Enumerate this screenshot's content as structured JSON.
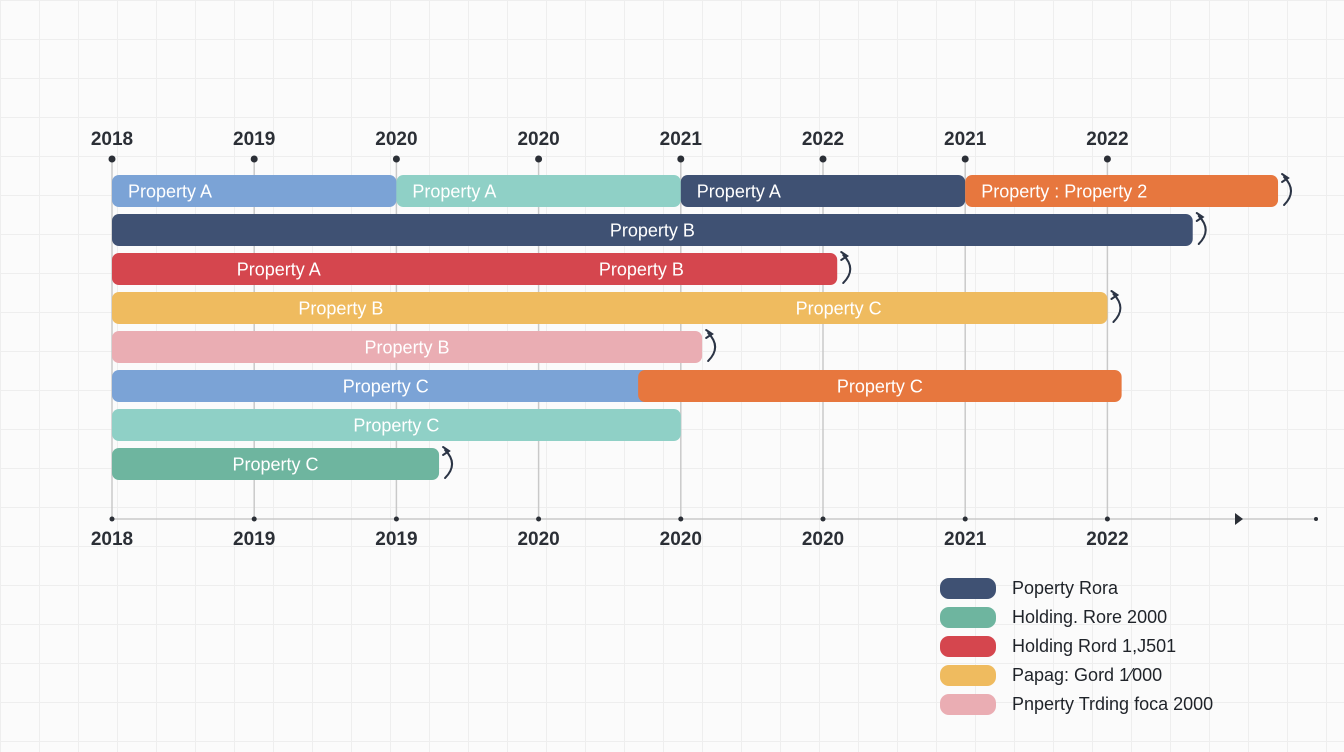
{
  "chart_data": {
    "type": "gantt",
    "title": "",
    "top_ticks": [
      "2018",
      "2019",
      "2020",
      "2020",
      "2021",
      "2022",
      "2021",
      "2022"
    ],
    "bottom_ticks": [
      "2018",
      "2019",
      "2019",
      "2020",
      "2020",
      "2020",
      "2021",
      "2022"
    ],
    "rows": [
      {
        "segments": [
          {
            "label": "Property A",
            "start": 0,
            "end": 2,
            "color": "#7ba3d6"
          },
          {
            "label": "Property A",
            "start": 2,
            "end": 4,
            "color": "#8fd0c6"
          },
          {
            "label": "Property A",
            "start": 4,
            "end": 6,
            "color": "#3f5173"
          },
          {
            "label": "Property : Property 2",
            "start": 6,
            "end": 8.2,
            "color": "#e7773e"
          }
        ],
        "loop": true
      },
      {
        "segments": [
          {
            "label": "Property B",
            "start": 0,
            "end": 7.6,
            "color": "#3f5173"
          }
        ],
        "loop": true
      },
      {
        "segments": [
          {
            "label": "Property A",
            "start": 0,
            "end": 5.1,
            "color": "#d5464e",
            "labels": [
              "Property A",
              "Property B"
            ]
          }
        ],
        "loop": true
      },
      {
        "segments": [
          {
            "label": "Property B",
            "start": 0,
            "end": 7.0,
            "color": "#efbb5f",
            "labels": [
              "Property B",
              "Property C"
            ]
          }
        ],
        "loop": true
      },
      {
        "segments": [
          {
            "label": "Property B",
            "start": 0,
            "end": 4.15,
            "color": "#eaadb3"
          }
        ],
        "loop": true
      },
      {
        "segments": [
          {
            "label": "Property C",
            "start": 0,
            "end": 3.85,
            "color": "#7ba3d6"
          },
          {
            "label": "Property C",
            "start": 3.7,
            "end": 7.1,
            "color": "#e7773e"
          }
        ],
        "loop": false
      },
      {
        "segments": [
          {
            "label": "Property C",
            "start": 0,
            "end": 4.0,
            "color": "#8fd0c6"
          }
        ],
        "loop": false
      },
      {
        "segments": [
          {
            "label": "Property C",
            "start": 0,
            "end": 2.3,
            "color": "#6eb59f"
          }
        ],
        "loop": true
      }
    ]
  },
  "legend": [
    {
      "label": "Poperty Rora",
      "color": "#3f5173"
    },
    {
      "label": "Holding. Rore 2000",
      "color": "#6eb59f"
    },
    {
      "label": "Holding Rord 1,J501",
      "color": "#d5464e"
    },
    {
      "label": "Papag: Gord 1⁄000",
      "color": "#efbb5f"
    },
    {
      "label": "Pnperty Trding foca 2000",
      "color": "#eaadb3"
    }
  ],
  "colors": {
    "axis": "#2b2f36",
    "gridline": "#c9c9c9",
    "loop_icon": "#2b3445"
  },
  "icons": {
    "row_end": "loop-arrow-icon",
    "axis_end": "arrow-right-icon"
  }
}
